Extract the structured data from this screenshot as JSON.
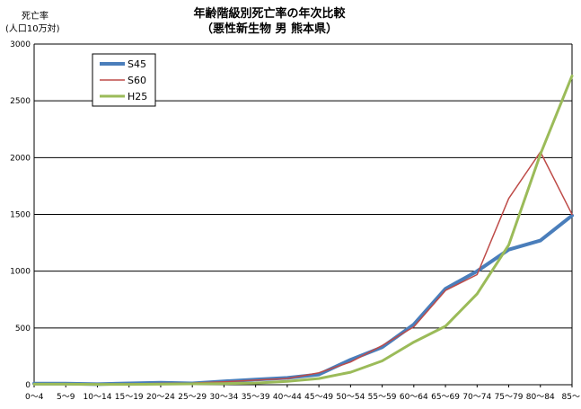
{
  "chart_data": {
    "type": "line",
    "title": "年齢階級別死亡率の年次比較",
    "subtitle": "（悪性新生物 男 熊本県）",
    "ylabel_line1": "死亡率",
    "ylabel_line2": "(人口10万対)",
    "ylim": [
      0,
      3000
    ],
    "yticks": [
      "0",
      "500",
      "1000",
      "1500",
      "2000",
      "2500",
      "3000"
    ],
    "categories": [
      "0〜4",
      "5〜9",
      "10〜14",
      "15〜19",
      "20〜24",
      "25〜29",
      "30〜34",
      "35〜39",
      "40〜44",
      "45〜49",
      "50〜54",
      "55〜59",
      "60〜64",
      "65〜69",
      "70〜74",
      "75〜79",
      "80〜84",
      "85〜"
    ],
    "grid": "horizontal",
    "legend_position": "top-left",
    "series": [
      {
        "name": "S45",
        "color": "#4a7ebb",
        "width": 4,
        "values": [
          10,
          10,
          5,
          12,
          18,
          12,
          30,
          45,
          60,
          90,
          220,
          330,
          530,
          845,
          1000,
          1190,
          1270,
          1490
        ]
      },
      {
        "name": "S60",
        "color": "#be4b48",
        "width": 1.5,
        "values": [
          5,
          5,
          5,
          8,
          12,
          15,
          25,
          40,
          55,
          105,
          200,
          345,
          510,
          830,
          970,
          1640,
          2050,
          1500
        ]
      },
      {
        "name": "H25",
        "color": "#9bbb59",
        "width": 3,
        "values": [
          5,
          5,
          3,
          3,
          5,
          8,
          10,
          15,
          30,
          55,
          110,
          210,
          375,
          515,
          800,
          1230,
          2030,
          2720
        ]
      }
    ]
  }
}
